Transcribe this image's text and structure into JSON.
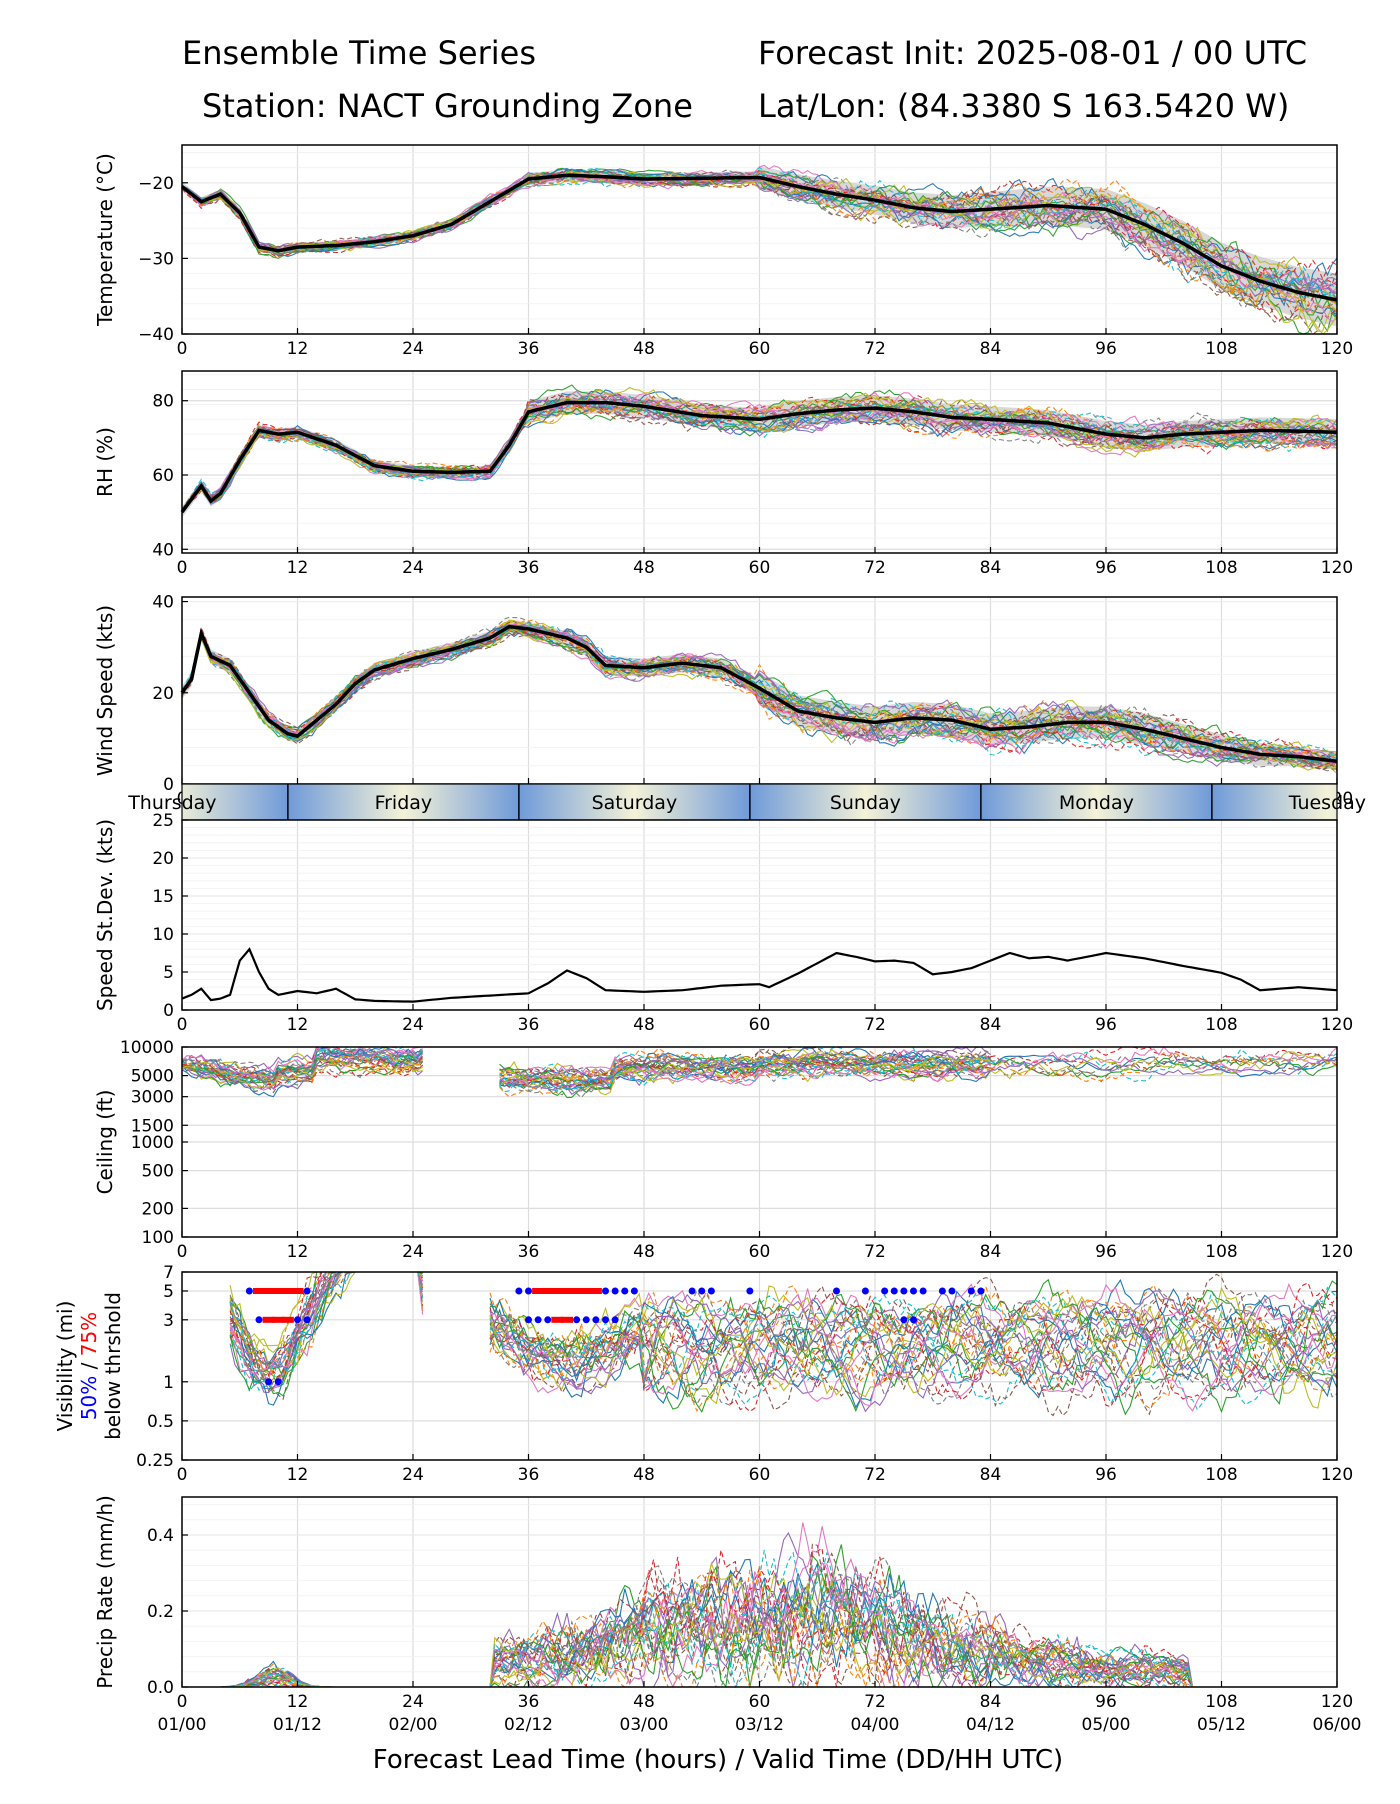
{
  "header": {
    "left_line1": "Ensemble Time Series",
    "left_line2": "Station: NACT Grounding Zone",
    "right_line1": "Forecast Init: 2025-08-01 / 00 UTC",
    "right_line2": "Lat/Lon: (84.3380 S 163.5420 W)"
  },
  "xlabel": "Forecast Lead Time (hours) / Valid Time (DD/HH UTC)",
  "day_band": [
    "Thursday",
    "Friday",
    "Saturday",
    "Sunday",
    "Monday",
    "Tuesday"
  ],
  "day_band_boundaries_hours": [
    11,
    35,
    59,
    83,
    107
  ],
  "visibility_label": {
    "line1": "Visibility (mi)",
    "pct50": "50%",
    "slash": " / ",
    "pct75": "75%",
    "line3": "below thrshold"
  },
  "colors": {
    "mean": "#000000",
    "spread": "#c8c8c8",
    "pct50": "#0000ff",
    "pct75": "#ff0000",
    "members": [
      "#1f77b4",
      "#ff7f0e",
      "#2ca02c",
      "#d62728",
      "#9467bd",
      "#8c564b",
      "#e377c2",
      "#7f7f7f",
      "#bcbd22",
      "#17becf"
    ]
  },
  "chart_data": [
    {
      "type": "line",
      "panel": "temperature",
      "ylabel": "Temperature (°C)",
      "xlim": [
        0,
        120
      ],
      "ylim": [
        -40,
        -15
      ],
      "xticks": [
        0,
        12,
        24,
        36,
        48,
        60,
        72,
        84,
        96,
        108,
        120
      ],
      "yticks": [
        -40,
        -30,
        -20
      ],
      "ensemble_mean": {
        "x": [
          0,
          2,
          4,
          6,
          8,
          10,
          12,
          16,
          20,
          24,
          28,
          32,
          36,
          40,
          44,
          48,
          54,
          60,
          64,
          68,
          72,
          76,
          80,
          84,
          90,
          96,
          100,
          104,
          108,
          112,
          116,
          120
        ],
        "y": [
          -20.5,
          -22.5,
          -21.5,
          -24,
          -28.5,
          -29,
          -28.5,
          -28.3,
          -27.8,
          -27,
          -25.5,
          -22.5,
          -19.5,
          -19,
          -19.2,
          -19.5,
          -19.4,
          -19.3,
          -20.5,
          -21.5,
          -22.3,
          -23.3,
          -23.8,
          -23.5,
          -23,
          -23.5,
          -25.5,
          -28,
          -31,
          -33,
          -34.5,
          -35.5
        ]
      },
      "members_count": 30
    },
    {
      "type": "line",
      "panel": "rh",
      "ylabel": "RH (%)",
      "xlim": [
        0,
        120
      ],
      "ylim": [
        39,
        88
      ],
      "xticks": [
        0,
        12,
        24,
        36,
        48,
        60,
        72,
        84,
        96,
        108,
        120
      ],
      "yticks": [
        40,
        60,
        80
      ],
      "ensemble_mean": {
        "x": [
          0,
          2,
          3,
          4,
          6,
          8,
          10,
          12,
          16,
          20,
          24,
          28,
          32,
          34,
          36,
          40,
          44,
          48,
          54,
          60,
          64,
          68,
          72,
          76,
          80,
          84,
          90,
          96,
          100,
          104,
          108,
          112,
          116,
          120
        ],
        "y": [
          50,
          57,
          53,
          55,
          64,
          72,
          71,
          71.5,
          68,
          62.5,
          61,
          60.7,
          61,
          68,
          77,
          79.5,
          79.5,
          78.5,
          76,
          75,
          76.5,
          77.5,
          78,
          77,
          75.5,
          75,
          74,
          71,
          70,
          71,
          71.5,
          72,
          71.8,
          71.5
        ]
      },
      "members_count": 30
    },
    {
      "type": "line",
      "panel": "wind_speed",
      "ylabel": "Wind Speed (kts)",
      "xlim": [
        0,
        120
      ],
      "ylim": [
        0,
        41
      ],
      "xticks": [
        0,
        12,
        24,
        36,
        48,
        60,
        72,
        84,
        96,
        108,
        120
      ],
      "yticks": [
        0,
        20,
        40
      ],
      "ensemble_mean": {
        "x": [
          0,
          1,
          2,
          3,
          5,
          7,
          9,
          11,
          12,
          14,
          16,
          18,
          20,
          24,
          28,
          32,
          34,
          36,
          40,
          42,
          44,
          48,
          52,
          56,
          60,
          64,
          68,
          72,
          76,
          80,
          84,
          88,
          92,
          96,
          100,
          104,
          108,
          112,
          116,
          120
        ],
        "y": [
          20,
          23,
          33,
          28,
          26,
          20,
          14,
          11,
          10.5,
          14,
          17.5,
          22,
          25,
          27.5,
          29.5,
          32,
          34.5,
          34,
          32,
          30,
          26,
          25.5,
          26.5,
          25.5,
          21,
          16,
          14.5,
          13.5,
          14.5,
          14,
          12,
          12.5,
          13.5,
          13.5,
          12,
          10,
          8,
          6.5,
          6,
          5
        ]
      },
      "members_count": 30
    },
    {
      "type": "line",
      "panel": "speed_stdev",
      "ylabel": "Speed St.Dev. (kts)",
      "xlim": [
        0,
        120
      ],
      "ylim": [
        0,
        25
      ],
      "xticks": [
        0,
        12,
        24,
        36,
        48,
        60,
        72,
        84,
        96,
        108,
        120
      ],
      "yticks": [
        0,
        5,
        10,
        15,
        20,
        25
      ],
      "series": [
        {
          "x": [
            0,
            1,
            2,
            3,
            4,
            5,
            6,
            7,
            8,
            9,
            10,
            12,
            14,
            16,
            18,
            20,
            24,
            28,
            32,
            36,
            38,
            40,
            42,
            44,
            48,
            52,
            56,
            60,
            61,
            64,
            68,
            70,
            72,
            74,
            76,
            78,
            80,
            82,
            84,
            86,
            88,
            90,
            92,
            96,
            100,
            104,
            108,
            110,
            112,
            116,
            120
          ],
          "y": [
            1.5,
            2,
            2.8,
            1.3,
            1.5,
            2,
            6.5,
            8,
            5,
            2.8,
            2,
            2.5,
            2.2,
            2.8,
            1.4,
            1.2,
            1.1,
            1.6,
            1.9,
            2.2,
            3.5,
            5.2,
            4.2,
            2.6,
            2.4,
            2.6,
            3.2,
            3.4,
            3,
            4.8,
            7.5,
            7,
            6.4,
            6.5,
            6.2,
            4.7,
            5,
            5.5,
            6.5,
            7.5,
            6.8,
            7,
            6.5,
            7.5,
            6.8,
            5.8,
            4.9,
            4,
            2.6,
            3,
            2.6
          ]
        }
      ]
    },
    {
      "type": "line",
      "panel": "ceiling",
      "ylabel": "Ceiling (ft)",
      "yscale": "log",
      "xlim": [
        0,
        120
      ],
      "ylim": [
        100,
        10000
      ],
      "xticks": [
        0,
        12,
        24,
        36,
        48,
        60,
        72,
        84,
        96,
        108,
        120
      ],
      "yticks": [
        100,
        200,
        500,
        1000,
        1500,
        3000,
        5000,
        10000
      ],
      "members_count": 30
    },
    {
      "type": "line",
      "panel": "visibility",
      "yscale": "log",
      "xlim": [
        0,
        120
      ],
      "ylim": [
        0.25,
        7
      ],
      "xticks": [
        0,
        12,
        24,
        36,
        48,
        60,
        72,
        84,
        96,
        108,
        120
      ],
      "yticks": [
        0.25,
        0.5,
        1,
        3,
        5,
        7
      ],
      "threshold_markers": {
        "pct50_hours": {
          "5": [
            7,
            8,
            9,
            10,
            11,
            12,
            13,
            35,
            36,
            37,
            38,
            39,
            40,
            41,
            42,
            43,
            44,
            45,
            46,
            47,
            53,
            54,
            55,
            59,
            68,
            71,
            73,
            74,
            75,
            76,
            77,
            79,
            80,
            82,
            83
          ],
          "3": [
            8,
            9,
            10,
            11,
            12,
            13,
            36,
            37,
            38,
            39,
            40,
            41,
            42,
            43,
            44,
            45,
            75,
            76
          ],
          "1": [
            9,
            10
          ]
        },
        "pct75_hours": {
          "5": [
            8,
            9,
            10,
            11,
            12,
            37,
            38,
            39,
            40,
            41,
            42,
            43
          ],
          "3": [
            9,
            10,
            11,
            39,
            40
          ]
        }
      },
      "members_count": 30
    },
    {
      "type": "line",
      "panel": "precip_rate",
      "ylabel": "Precip Rate (mm/h)",
      "xlim": [
        0,
        120
      ],
      "ylim": [
        0,
        0.5
      ],
      "xticks": [
        0,
        12,
        24,
        36,
        48,
        60,
        72,
        84,
        96,
        108,
        120
      ],
      "xticklabels_bottom": [
        "01/00",
        "01/12",
        "02/00",
        "02/12",
        "03/00",
        "03/12",
        "04/00",
        "04/12",
        "05/00",
        "05/12",
        "06/00"
      ],
      "yticks": [
        0.0,
        0.2,
        0.4
      ],
      "members_count": 30
    }
  ]
}
